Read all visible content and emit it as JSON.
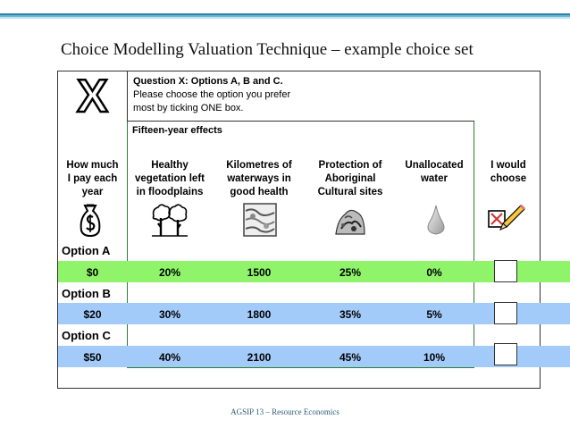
{
  "slide_title": "Choice Modelling Valuation Technique – example choice set",
  "badge_letter": "X",
  "question": {
    "title": "Question X: Options A, B and C.",
    "line1": "Please choose the option you prefer",
    "line2": "most by ticking ONE box."
  },
  "effects_label": "Fifteen-year effects",
  "columns": [
    {
      "lines": [
        "How much",
        "I pay each",
        "year"
      ],
      "icon": "money-bag-icon"
    },
    {
      "lines": [
        "Healthy",
        "vegetation left",
        "in floodplains"
      ],
      "icon": "trees-icon"
    },
    {
      "lines": [
        "Kilometres of",
        "waterways in",
        "good health"
      ],
      "icon": "waterway-icon"
    },
    {
      "lines": [
        "Protection of",
        "Aboriginal",
        "Cultural sites"
      ],
      "icon": "cultural-site-icon"
    },
    {
      "lines": [
        "Unallocated",
        "water"
      ],
      "icon": "water-drop-icon"
    },
    {
      "lines": [
        "I would",
        "choose"
      ],
      "icon": "tick-box-pencil-icon"
    }
  ],
  "options": [
    {
      "label": "Option A",
      "values": [
        "$0",
        "20%",
        "1500",
        "25%",
        "0%"
      ]
    },
    {
      "label": "Option B",
      "values": [
        "$20",
        "30%",
        "1800",
        "35%",
        "5%"
      ]
    },
    {
      "label": "Option C",
      "values": [
        "$50",
        "40%",
        "2100",
        "45%",
        "10%"
      ]
    }
  ],
  "footer": "AGSIP 13 – Resource Economics"
}
